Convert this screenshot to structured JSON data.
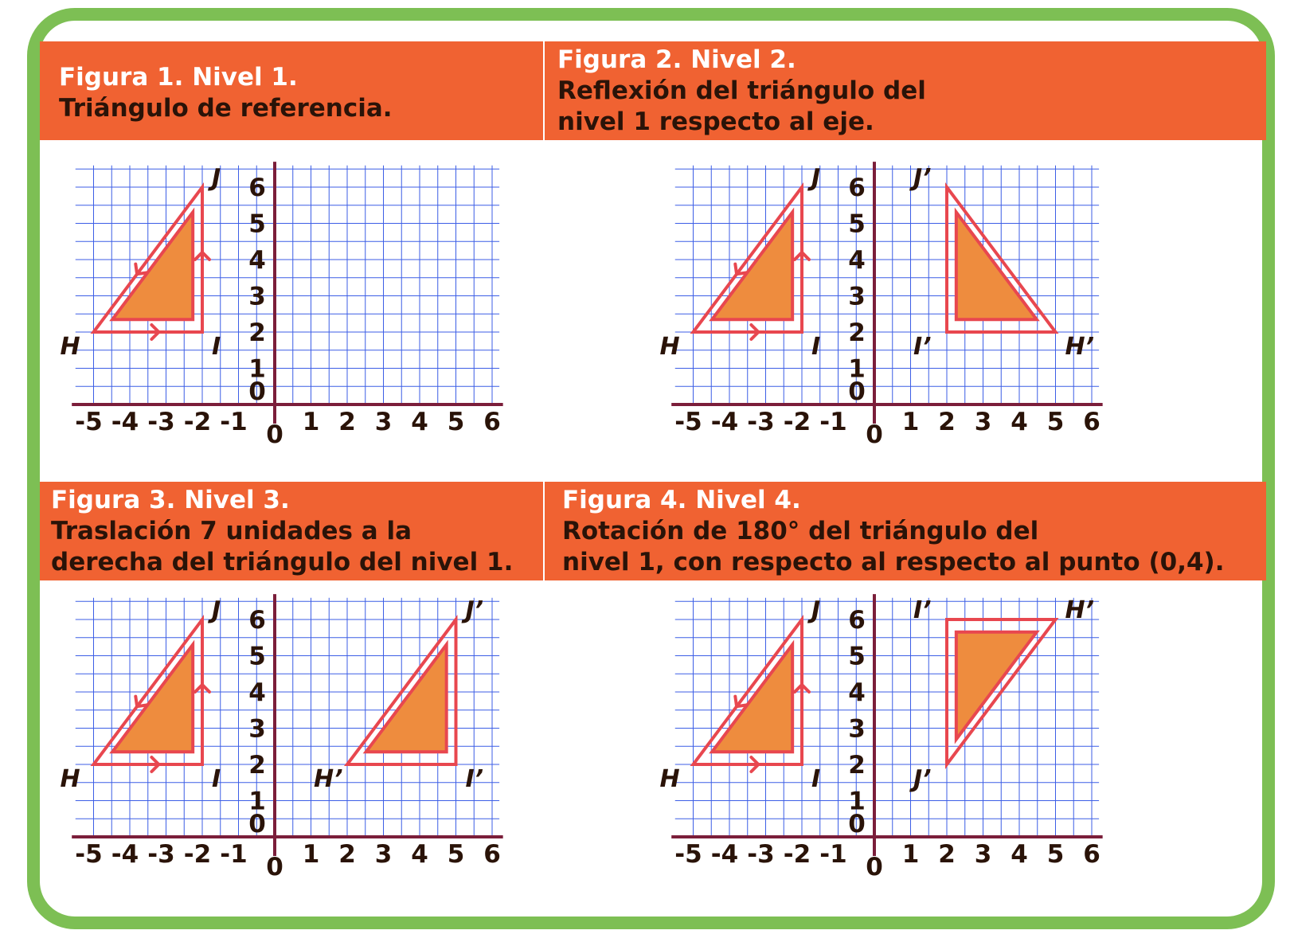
{
  "colors": {
    "frame": "#7dbf54",
    "banner": "#f06232",
    "grid": "#3c5ee6",
    "axis": "#7b1e3a",
    "triangle_outline": "#e8474f",
    "triangle_fill": "#ee8c3e",
    "text_dark": "#2a1308"
  },
  "axes": {
    "x_ticks": [
      "-5",
      "-4",
      "-3",
      "-2",
      "-1",
      "0",
      "1",
      "2",
      "3",
      "4",
      "5",
      "6"
    ],
    "y_ticks": [
      "0",
      "1",
      "2",
      "3",
      "4",
      "5",
      "6"
    ]
  },
  "panels": [
    {
      "title": "Figura 1.  Nivel 1.",
      "description": [
        "Triángulo de referencia."
      ],
      "triangles": [
        {
          "H": [
            -5,
            2
          ],
          "I": [
            -2,
            2
          ],
          "J": [
            -2,
            6
          ],
          "labels": {
            "H": "H",
            "I": "I",
            "J": "J"
          },
          "arrows": true
        }
      ]
    },
    {
      "title": "Figura 2. Nivel 2.",
      "description": [
        "Reflexión del triángulo del",
        "nivel 1 respecto al eje."
      ],
      "triangles": [
        {
          "H": [
            -5,
            2
          ],
          "I": [
            -2,
            2
          ],
          "J": [
            -2,
            6
          ],
          "labels": {
            "H": "H",
            "I": "I",
            "J": "J"
          },
          "arrows": true
        },
        {
          "H": [
            5,
            2
          ],
          "I": [
            2,
            2
          ],
          "J": [
            2,
            6
          ],
          "labels": {
            "H": "H’",
            "I": "I’",
            "J": "J’"
          },
          "arrows": false
        }
      ]
    },
    {
      "title": "Figura 3.  Nivel 3.",
      "description": [
        "Traslación 7 unidades a la",
        "derecha del triángulo del nivel 1."
      ],
      "triangles": [
        {
          "H": [
            -5,
            2
          ],
          "I": [
            -2,
            2
          ],
          "J": [
            -2,
            6
          ],
          "labels": {
            "H": "H",
            "I": "I",
            "J": "J"
          },
          "arrows": true
        },
        {
          "H": [
            2,
            2
          ],
          "I": [
            5,
            2
          ],
          "J": [
            5,
            6
          ],
          "labels": {
            "H": "H’",
            "I": "I’",
            "J": "J’"
          },
          "arrows": false
        }
      ]
    },
    {
      "title": "Figura 4.  Nivel 4.",
      "description": [
        "Rotación de 180° del triángulo del",
        "nivel 1, con respecto al respecto al punto (0,4)."
      ],
      "triangles": [
        {
          "H": [
            -5,
            2
          ],
          "I": [
            -2,
            2
          ],
          "J": [
            -2,
            6
          ],
          "labels": {
            "H": "H",
            "I": "I",
            "J": "J"
          },
          "arrows": true
        },
        {
          "H": [
            5,
            6
          ],
          "I": [
            2,
            6
          ],
          "J": [
            2,
            2
          ],
          "labels": {
            "H": "H’",
            "I": "I’",
            "J": "J’"
          },
          "arrows": false
        }
      ]
    }
  ]
}
